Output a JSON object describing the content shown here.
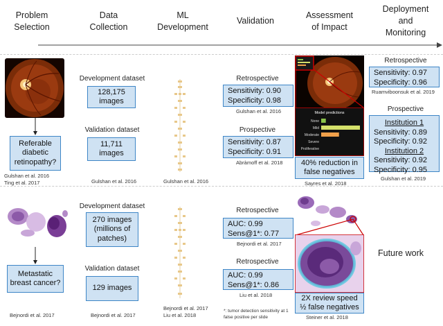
{
  "headers": [
    {
      "line1": "Problem",
      "line2": "Selection"
    },
    {
      "line1": "Data",
      "line2": "Collection"
    },
    {
      "line1": "ML",
      "line2": "Development"
    },
    {
      "line1": "Validation",
      "line2": ""
    },
    {
      "line1": "Assessment",
      "line2": "of Impact"
    },
    {
      "line1": "Deployment",
      "line2": "and",
      "line3": "Monitoring"
    }
  ],
  "row1": {
    "problem": {
      "line1": "Referable",
      "line2": "diabetic",
      "line3": "retinopathy?",
      "cite1": "Gulshan et al. 2016",
      "cite2": "Ting et al. 2017"
    },
    "data": {
      "dev_label": "Development dataset",
      "dev_count": "128,175",
      "dev_unit": "images",
      "val_label": "Validation dataset",
      "val_count": "11,711",
      "val_unit": "images",
      "cite": "Gulshan et al. 2016"
    },
    "ml": {
      "cite": "Gulshan et al. 2016"
    },
    "validation": {
      "retro_label": "Retrospective",
      "retro_sens": "Sensitivity: 0.90",
      "retro_spec": "Specificity: 0.98",
      "retro_cite": "Gulshan et al. 2016",
      "pro_label": "Prospective",
      "pro_sens": "Sensitivity: 0.87",
      "pro_spec": "Specificity: 0.91",
      "pro_cite": "Abràmoff et al. 2018"
    },
    "impact": {
      "chart_title": "Model predictions",
      "result_line1": "40% reduction in",
      "result_line2": "false negatives",
      "cite": "Sayres et al. 2018"
    },
    "deployment": {
      "retro_label": "Retrospective",
      "retro_sens": "Sensitivity: 0.97",
      "retro_spec": "Specificity: 0.96",
      "retro_cite": "Ruamviboonsuk et al. 2019",
      "pro_label": "Prospective",
      "inst1": "Institution 1",
      "inst1_sens": "Sensitivity: 0.89",
      "inst1_spec": "Specificity: 0.92",
      "inst2": "Institution 2",
      "inst2_sens": "Sensitivity: 0.92",
      "inst2_spec": "Specificity: 0.95",
      "cite": "Gulshan et al. 2019"
    }
  },
  "row2": {
    "problem": {
      "line1": "Metastatic",
      "line2": "breast cancer?",
      "cite": "Bejnordi et al. 2017"
    },
    "data": {
      "dev_label": "Development dataset",
      "dev_line1": "270 images",
      "dev_line2": "(millions of",
      "dev_line3": "patches)",
      "val_label": "Validation dataset",
      "val_text": "129 images",
      "cite": "Bejnordi et al. 2017"
    },
    "ml": {
      "cite1": "Bejnordi et al. 2017",
      "cite2": "Liu et al. 2018"
    },
    "validation": {
      "retro1_label": "Retrospective",
      "retro1_auc": "AUC: 0.99",
      "retro1_sens": "Sens@1*: 0.77",
      "retro1_cite": "Bejnordi et al. 2017",
      "retro2_label": "Retrospective",
      "retro2_auc": "AUC: 0.99",
      "retro2_sens": "Sens@1*: 0.86",
      "retro2_cite": "Liu et al. 2018",
      "footnote1": "*: tumor detection sensitivity at 1",
      "footnote2": "false positive per slide"
    },
    "impact": {
      "result_line1": "2X review speed",
      "result_line2": "½ false negatives",
      "cite": "Steiner et al. 2018"
    },
    "deployment": {
      "future": "Future work"
    }
  },
  "chart_data": {
    "type": "bar",
    "title": "Model predictions",
    "categories": [
      "None",
      "Mild",
      "Moderate",
      "Severe",
      "Proliferative"
    ],
    "values": [
      0.12,
      1.0,
      0.46,
      0.0,
      0.0
    ],
    "bar_colors": [
      "#8bc34a",
      "#d4e06a",
      "#f0a04a",
      "#e07a5f",
      "#e07a5f"
    ],
    "xlim": [
      0,
      1
    ]
  },
  "colors": {
    "box_fill": "#cfe2f3",
    "box_border": "#3d85c6",
    "highlight": "#cc0000"
  }
}
